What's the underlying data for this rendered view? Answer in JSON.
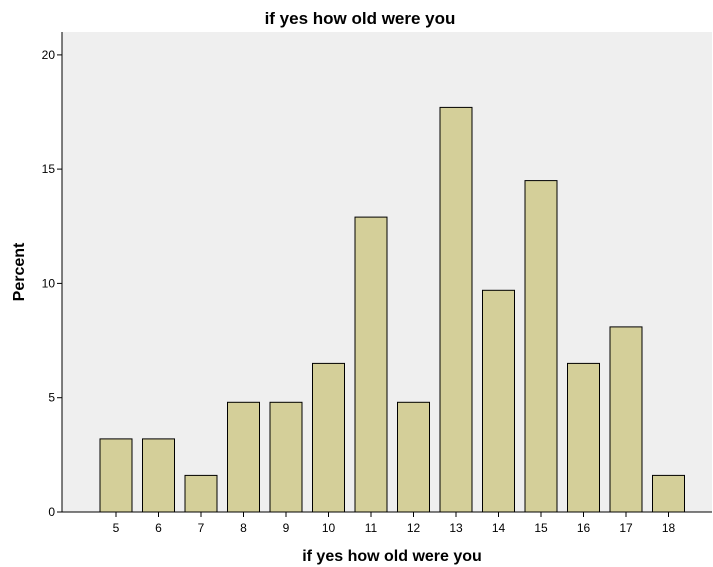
{
  "chart_data": {
    "type": "bar",
    "title": "if yes how old were you",
    "xlabel": "if yes how old were you",
    "ylabel": "Percent",
    "categories": [
      "5",
      "6",
      "7",
      "8",
      "9",
      "10",
      "11",
      "12",
      "13",
      "14",
      "15",
      "16",
      "17",
      "18"
    ],
    "values": [
      3.2,
      3.2,
      1.6,
      4.8,
      4.8,
      6.5,
      12.9,
      4.8,
      17.7,
      9.7,
      14.5,
      6.5,
      8.1,
      1.6
    ],
    "ylim": [
      0,
      21
    ],
    "yticks": [
      0,
      5,
      10,
      15,
      20
    ],
    "grid": false,
    "colors": {
      "bar_fill": "#d4cf99",
      "bar_stroke": "#000000",
      "plot_background": "#efefef"
    }
  }
}
